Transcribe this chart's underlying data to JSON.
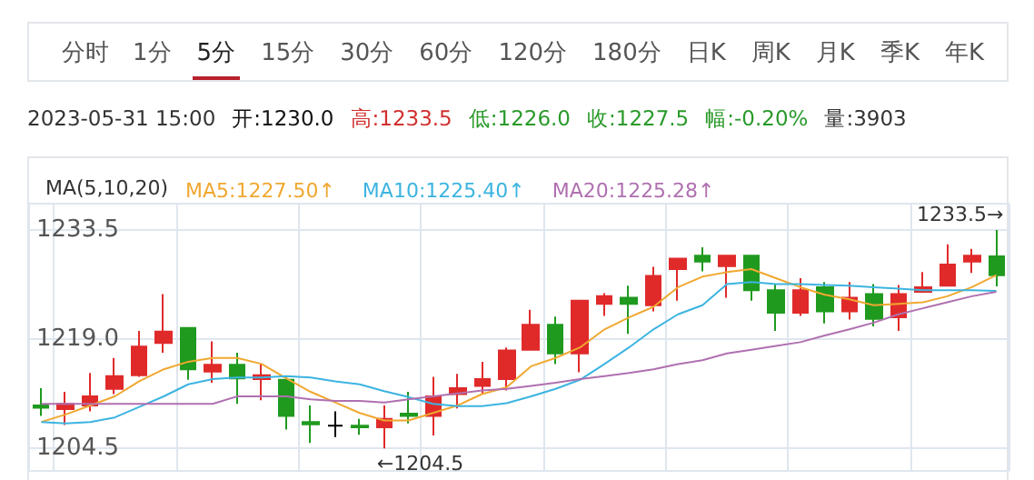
{
  "chart_data": {
    "type": "candlestick",
    "legend_title": "MA(5,10,20)",
    "legend": "top left",
    "grid": true,
    "tick_labels": "y",
    "annotations": [
      "分时",
      "1分",
      "5分",
      "15分",
      "30分",
      "60分",
      "120分",
      "180分",
      "日K",
      "周K",
      "月K",
      "季K",
      "年K",
      "2023-05-31  15:00",
      "开:1230.0",
      "高:1233.5",
      "低:1226.0",
      "收:1227.5",
      "幅:-0.20%",
      "量:3903",
      "←1204.5",
      "1233.5→"
    ],
    "categories": [
      null,
      null,
      null,
      null,
      null,
      null,
      null,
      null,
      null,
      null,
      null,
      null,
      null,
      null,
      null,
      null,
      null,
      null,
      null,
      null,
      null,
      null,
      null,
      null,
      null,
      null,
      null,
      null,
      null,
      null,
      null,
      null,
      null,
      null,
      null,
      null,
      null,
      null,
      null,
      null
    ],
    "ohlc": [
      [
        1210.2,
        1212.5,
        1208.8,
        1209.9
      ],
      [
        1209.7,
        1212.0,
        1207.6,
        1210.4
      ],
      [
        1210.2,
        1214.5,
        1209.4,
        1211.4
      ],
      [
        1212.4,
        1216.5,
        1211.7,
        1214.1
      ],
      [
        1214.2,
        1220.1,
        1214.0,
        1218.0
      ],
      [
        1218.5,
        1225.0,
        1217.2,
        1220.0
      ],
      [
        1220.5,
        1220.5,
        1213.6,
        1215.0
      ],
      [
        1214.7,
        1218.7,
        1213.2,
        1215.6
      ],
      [
        1215.6,
        1217.2,
        1210.4,
        1213.8
      ],
      [
        1213.7,
        1215.7,
        1210.9,
        1214.2
      ],
      [
        1213.6,
        1214.0,
        1207.0,
        1208.8
      ],
      [
        1208.0,
        1210.2,
        1205.2,
        1207.7
      ],
      [
        1207.5,
        1209.4,
        1206.0,
        1207.5
      ],
      [
        1207.5,
        1208.4,
        1206.3,
        1207.3
      ],
      [
        1207.3,
        1210.2,
        1204.5,
        1208.4
      ],
      [
        1209.1,
        1212.0,
        1207.8,
        1208.8
      ],
      [
        1208.8,
        1214.0,
        1206.2,
        1211.4
      ],
      [
        1211.7,
        1214.4,
        1209.8,
        1212.5
      ],
      [
        1212.8,
        1216.0,
        1211.7,
        1213.7
      ],
      [
        1213.7,
        1217.9,
        1212.2,
        1217.5
      ],
      [
        1217.6,
        1222.9,
        1217.6,
        1220.9
      ],
      [
        1220.9,
        1222.0,
        1215.7,
        1217.1
      ],
      [
        1217.1,
        1224.1,
        1214.6,
        1224.1
      ],
      [
        1223.7,
        1225.1,
        1222.1,
        1224.7
      ],
      [
        1224.5,
        1226.1,
        1219.7,
        1223.7
      ],
      [
        1223.5,
        1228.6,
        1222.7,
        1227.4
      ],
      [
        1228.3,
        1229.7,
        1224.1,
        1229.7
      ],
      [
        1230.1,
        1231.2,
        1228.0,
        1229.3
      ],
      [
        1228.7,
        1230.1,
        1224.5,
        1230.1
      ],
      [
        1230.1,
        1230.1,
        1224.1,
        1225.5
      ],
      [
        1225.5,
        1226.3,
        1220.1,
        1222.5
      ],
      [
        1222.5,
        1227.1,
        1222.1,
        1225.5
      ],
      [
        1225.9,
        1226.6,
        1221.1,
        1222.7
      ],
      [
        1222.7,
        1226.6,
        1221.6,
        1224.5
      ],
      [
        1225.0,
        1226.3,
        1220.7,
        1221.7
      ],
      [
        1221.9,
        1226.2,
        1220.1,
        1225.0
      ],
      [
        1225.3,
        1227.9,
        1225.3,
        1225.9
      ],
      [
        1226.1,
        1231.6,
        1226.1,
        1228.9
      ],
      [
        1229.3,
        1231.0,
        1227.8,
        1230.1
      ],
      [
        1230.0,
        1233.5,
        1226.0,
        1227.5
      ]
    ],
    "series": [
      {
        "name": "MA5:1227.50↑",
        "type": "line",
        "color": "#f0a830",
        "values": [
          1208.0,
          1209.0,
          1210.2,
          1211.4,
          1213.4,
          1215.0,
          1216.0,
          1216.5,
          1216.5,
          1215.7,
          1213.8,
          1212.0,
          1210.6,
          1209.2,
          1208.2,
          1208.2,
          1209.2,
          1210.2,
          1211.7,
          1212.6,
          1215.4,
          1216.5,
          1217.9,
          1220.3,
          1221.9,
          1223.3,
          1225.9,
          1227.3,
          1227.9,
          1228.3,
          1227.1,
          1225.9,
          1224.9,
          1224.3,
          1223.5,
          1223.7,
          1223.9,
          1224.7,
          1225.9,
          1227.5
        ]
      },
      {
        "name": "MA10:1225.40↑",
        "type": "line",
        "color": "#3cb4e0",
        "values": [
          1208.0,
          1207.8,
          1208.0,
          1208.6,
          1210.0,
          1211.4,
          1213.0,
          1213.7,
          1213.9,
          1213.9,
          1214.1,
          1213.9,
          1213.4,
          1213.0,
          1212.1,
          1211.3,
          1210.4,
          1210.1,
          1210.1,
          1210.5,
          1211.4,
          1212.4,
          1213.6,
          1215.7,
          1217.9,
          1220.3,
          1222.3,
          1223.5,
          1226.3,
          1226.6,
          1226.3,
          1226.3,
          1226.2,
          1226.1,
          1225.9,
          1225.7,
          1225.5,
          1225.5,
          1225.5,
          1225.4
        ]
      },
      {
        "name": "MA20:1225.28↑",
        "type": "line",
        "color": "#b070b0",
        "values": [
          1210.4,
          1210.4,
          1210.4,
          1210.4,
          1210.4,
          1210.4,
          1210.4,
          1210.4,
          1211.4,
          1211.4,
          1211.4,
          1211.0,
          1210.8,
          1210.8,
          1210.6,
          1211.0,
          1211.4,
          1211.8,
          1212.2,
          1212.4,
          1212.8,
          1213.2,
          1213.7,
          1214.1,
          1214.5,
          1215.0,
          1215.7,
          1216.2,
          1217.1,
          1217.6,
          1218.1,
          1218.6,
          1219.5,
          1220.3,
          1221.2,
          1222.3,
          1223.1,
          1223.9,
          1224.7,
          1225.3
        ]
      }
    ],
    "ylim": [
      1201.5,
      1237.0
    ],
    "yticks": [
      {
        "value": 1204.5,
        "label": "1204.5"
      },
      {
        "value": 1219.0,
        "label": "1219.0"
      },
      {
        "value": 1233.5,
        "label": "1233.5"
      }
    ]
  }
}
